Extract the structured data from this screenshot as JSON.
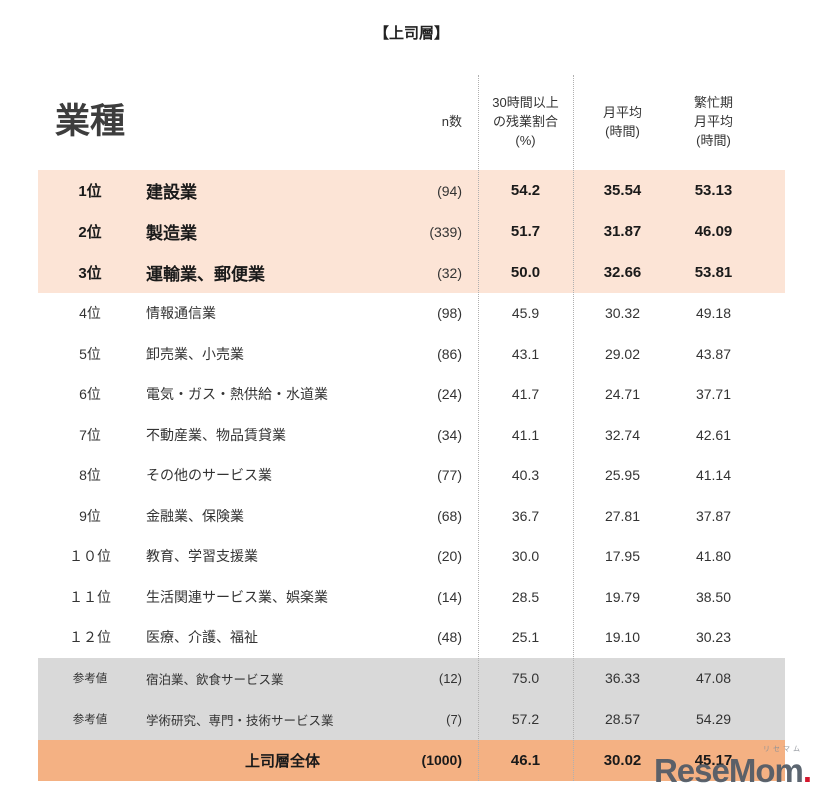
{
  "page": {
    "title": "【上司層】"
  },
  "header": {
    "industry": "業種",
    "n": "n数",
    "overtime": "30時間以上\nの残業割合\n(%)",
    "monthly": "月平均\n(時間)",
    "busy": "繁忙期\n月平均\n(時間)"
  },
  "chart_data": {
    "type": "table",
    "title": "【上司層】",
    "columns": [
      "業種",
      "n数",
      "30時間以上の残業割合(%)",
      "月平均(時間)",
      "繁忙期月平均(時間)"
    ],
    "rows": [
      {
        "rank": "1位",
        "industry": "建設業",
        "n": "(94)",
        "overtime": "54.2",
        "monthly": "35.54",
        "busy": "53.13",
        "tier": "top"
      },
      {
        "rank": "2位",
        "industry": "製造業",
        "n": "(339)",
        "overtime": "51.7",
        "monthly": "31.87",
        "busy": "46.09",
        "tier": "top"
      },
      {
        "rank": "3位",
        "industry": "運輸業、郵便業",
        "n": "(32)",
        "overtime": "50.0",
        "monthly": "32.66",
        "busy": "53.81",
        "tier": "top"
      },
      {
        "rank": "4位",
        "industry": "情報通信業",
        "n": "(98)",
        "overtime": "45.9",
        "monthly": "30.32",
        "busy": "49.18",
        "tier": "normal"
      },
      {
        "rank": "5位",
        "industry": "卸売業、小売業",
        "n": "(86)",
        "overtime": "43.1",
        "monthly": "29.02",
        "busy": "43.87",
        "tier": "normal"
      },
      {
        "rank": "6位",
        "industry": "電気・ガス・熱供給・水道業",
        "n": "(24)",
        "overtime": "41.7",
        "monthly": "24.71",
        "busy": "37.71",
        "tier": "normal"
      },
      {
        "rank": "7位",
        "industry": "不動産業、物品賃貸業",
        "n": "(34)",
        "overtime": "41.1",
        "monthly": "32.74",
        "busy": "42.61",
        "tier": "normal"
      },
      {
        "rank": "8位",
        "industry": "その他のサービス業",
        "n": "(77)",
        "overtime": "40.3",
        "monthly": "25.95",
        "busy": "41.14",
        "tier": "normal"
      },
      {
        "rank": "9位",
        "industry": "金融業、保険業",
        "n": "(68)",
        "overtime": "36.7",
        "monthly": "27.81",
        "busy": "37.87",
        "tier": "normal"
      },
      {
        "rank": "１０位",
        "industry": "教育、学習支援業",
        "n": "(20)",
        "overtime": "30.0",
        "monthly": "17.95",
        "busy": "41.80",
        "tier": "normal"
      },
      {
        "rank": "１１位",
        "industry": "生活関連サービス業、娯楽業",
        "n": "(14)",
        "overtime": "28.5",
        "monthly": "19.79",
        "busy": "38.50",
        "tier": "normal"
      },
      {
        "rank": "１２位",
        "industry": "医療、介護、福祉",
        "n": "(48)",
        "overtime": "25.1",
        "monthly": "19.10",
        "busy": "30.23",
        "tier": "normal"
      },
      {
        "rank": "参考値",
        "industry": "宿泊業、飲食サービス業",
        "n": "(12)",
        "overtime": "75.0",
        "monthly": "36.33",
        "busy": "47.08",
        "tier": "ref"
      },
      {
        "rank": "参考値",
        "industry": "学術研究、専門・技術サービス業",
        "n": "(7)",
        "overtime": "57.2",
        "monthly": "28.57",
        "busy": "54.29",
        "tier": "ref"
      },
      {
        "rank": "",
        "industry": "上司層全体",
        "n": "(1000)",
        "overtime": "46.1",
        "monthly": "30.02",
        "busy": "45.17",
        "tier": "total"
      }
    ]
  },
  "colors": {
    "top_row_bg": "#fce4d6",
    "ref_row_bg": "#d9d9d9",
    "total_row_bg": "#f4b183",
    "text": "#333333"
  },
  "watermark": {
    "text": "ReseMom",
    "sub": "リセマム"
  }
}
